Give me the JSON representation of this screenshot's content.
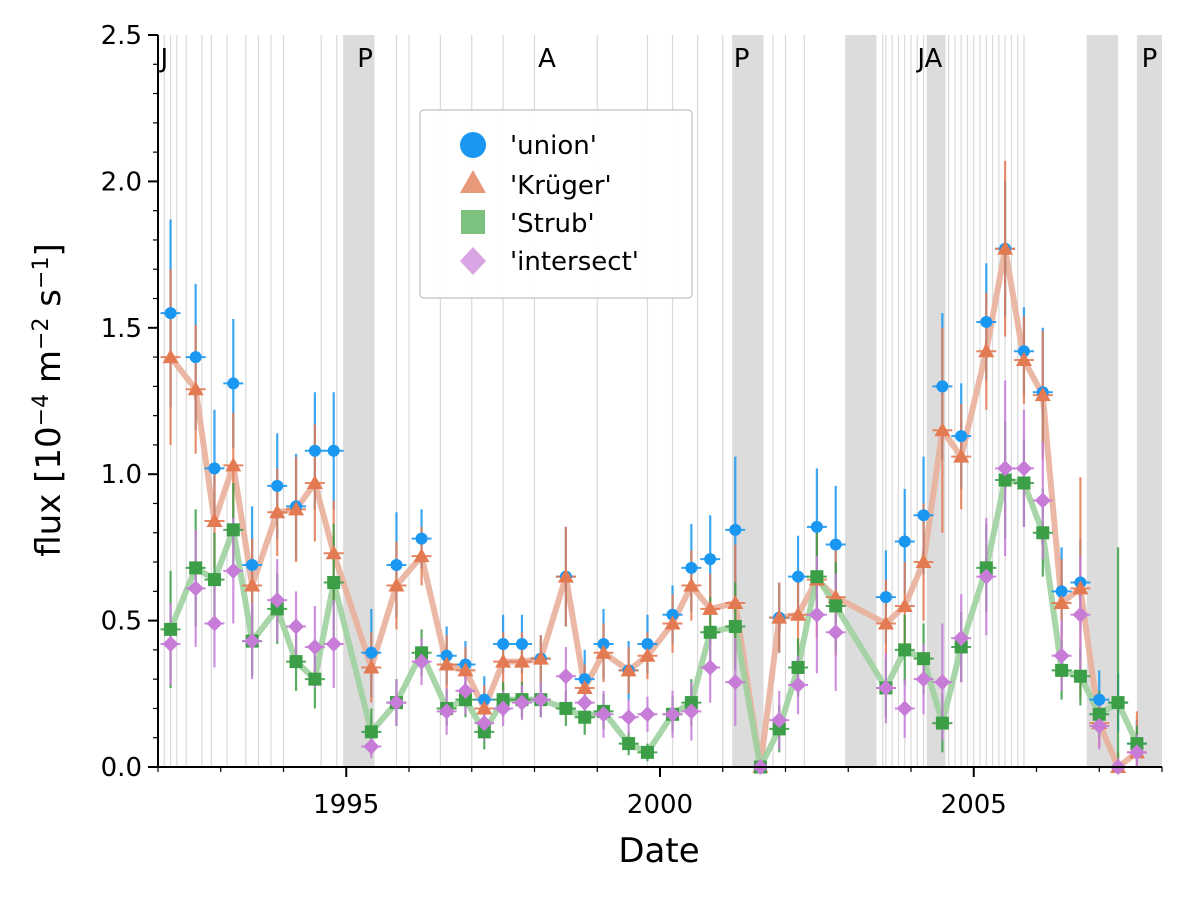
{
  "chart_data": {
    "type": "scatter",
    "xlabel": "Date",
    "ylabel_main": "flux [10",
    "ylabel_exp1": "−4",
    "ylabel_mid": " m",
    "ylabel_exp2": "−2",
    "ylabel_mid2": " s",
    "ylabel_exp3": "−1",
    "ylabel_end": "]",
    "xlim": [
      1992.0,
      2008.0
    ],
    "ylim": [
      0.0,
      2.5
    ],
    "x_ticks": [
      1995,
      2000,
      2005
    ],
    "x_tick_labels": [
      "1995",
      "2000",
      "2005"
    ],
    "y_ticks": [
      0.0,
      0.5,
      1.0,
      1.5,
      2.0,
      2.5
    ],
    "y_tick_labels": [
      "0.0",
      "0.5",
      "1.0",
      "1.5",
      "2.0",
      "2.5"
    ],
    "shaded_periods": [
      [
        1994.95,
        1995.45
      ],
      [
        2001.15,
        2001.65
      ],
      [
        2002.95,
        2003.45
      ],
      [
        2004.25,
        2004.55
      ],
      [
        2006.8,
        2007.3
      ],
      [
        2007.6,
        2008.0
      ]
    ],
    "vertical_lines": [
      1992.1,
      1992.2,
      1992.3,
      1992.45,
      1992.7,
      1992.85,
      1993.1,
      1993.4,
      1993.6,
      1993.8,
      1994.0,
      1994.6,
      1994.85,
      1995.8,
      1996.0,
      1996.5,
      1997.0,
      1997.5,
      1998.0,
      1999.0,
      1999.8,
      2000.2,
      2000.6,
      2001.0,
      2001.8,
      2002.0,
      2002.3,
      2003.55,
      2003.6,
      2003.7,
      2003.8,
      2003.9,
      2004.0,
      2004.1,
      2004.2,
      2004.6,
      2004.7,
      2004.8,
      2004.9,
      2005.0,
      2005.1,
      2005.2,
      2005.3,
      2005.4,
      2005.5,
      2005.6,
      2005.7,
      2005.8
    ],
    "region_labels": [
      {
        "x": 1992.1,
        "text": "J"
      },
      {
        "x": 1995.3,
        "text": "P"
      },
      {
        "x": 1998.2,
        "text": "A"
      },
      {
        "x": 2001.3,
        "text": "P"
      },
      {
        "x": 2004.3,
        "text": "JA"
      },
      {
        "x": 2007.8,
        "text": "P"
      }
    ],
    "series": [
      {
        "name": "'union'",
        "marker": "circle",
        "color": "#1a97f0",
        "line": false,
        "x": [
          1992.2,
          1992.6,
          1992.9,
          1993.2,
          1993.5,
          1993.9,
          1994.2,
          1994.5,
          1994.8,
          1995.4,
          1995.8,
          1996.2,
          1996.6,
          1996.9,
          1997.2,
          1997.5,
          1997.8,
          1998.1,
          1998.5,
          1998.8,
          1999.1,
          1999.5,
          1999.8,
          2000.2,
          2000.5,
          2000.8,
          2001.2,
          2001.9,
          2002.2,
          2002.5,
          2002.8,
          2003.6,
          2003.9,
          2004.2,
          2004.5,
          2004.8,
          2005.2,
          2005.5,
          2005.8,
          2006.1,
          2006.4,
          2006.7,
          2007.0,
          2007.3,
          2007.6
        ],
        "y": [
          1.55,
          1.4,
          1.02,
          1.31,
          0.69,
          0.96,
          0.89,
          1.08,
          1.08,
          0.39,
          0.69,
          0.78,
          0.38,
          0.35,
          0.23,
          0.42,
          0.42,
          0.37,
          0.65,
          0.3,
          0.42,
          0.33,
          0.42,
          0.52,
          0.68,
          0.71,
          0.81,
          0.51,
          0.65,
          0.82,
          0.76,
          0.58,
          0.77,
          0.86,
          1.3,
          1.13,
          1.52,
          1.77,
          1.42,
          1.28,
          0.6,
          0.63,
          0.23,
          0.22,
          0.08
        ],
        "err": [
          0.32,
          0.25,
          0.2,
          0.22,
          0.2,
          0.18,
          0.18,
          0.2,
          0.2,
          0.15,
          0.18,
          0.1,
          0.1,
          0.08,
          0.08,
          0.1,
          0.1,
          0.08,
          0.17,
          0.1,
          0.12,
          0.1,
          0.1,
          0.1,
          0.15,
          0.15,
          0.25,
          0.12,
          0.14,
          0.2,
          0.2,
          0.16,
          0.18,
          0.2,
          0.25,
          0.18,
          0.2,
          0.23,
          0.15,
          0.22,
          0.15,
          0.15,
          0.1,
          0.1,
          0.08
        ]
      },
      {
        "name": "'Krüger'",
        "marker": "triangle",
        "color": "#e47a52",
        "line": true,
        "line_color": "#eab09c",
        "x": [
          1992.2,
          1992.6,
          1992.9,
          1993.2,
          1993.5,
          1993.9,
          1994.2,
          1994.5,
          1994.8,
          1995.4,
          1995.8,
          1996.2,
          1996.6,
          1996.9,
          1997.2,
          1997.5,
          1997.8,
          1998.1,
          1998.5,
          1998.8,
          1999.1,
          1999.5,
          1999.8,
          2000.2,
          2000.5,
          2000.8,
          2001.2,
          2001.6,
          2001.9,
          2002.2,
          2002.5,
          2002.8,
          2003.6,
          2003.9,
          2004.2,
          2004.5,
          2004.8,
          2005.2,
          2005.5,
          2005.8,
          2006.1,
          2006.4,
          2006.7,
          2007.0,
          2007.3,
          2007.6
        ],
        "y": [
          1.4,
          1.29,
          0.84,
          1.03,
          0.62,
          0.87,
          0.88,
          0.97,
          0.73,
          0.34,
          0.62,
          0.72,
          0.35,
          0.33,
          0.2,
          0.36,
          0.36,
          0.37,
          0.65,
          0.27,
          0.39,
          0.33,
          0.38,
          0.49,
          0.62,
          0.54,
          0.56,
          0.0,
          0.51,
          0.52,
          0.64,
          0.58,
          0.49,
          0.55,
          0.7,
          1.15,
          1.06,
          1.42,
          1.77,
          1.39,
          1.27,
          0.56,
          0.61,
          0.15,
          0.0,
          0.05
        ],
        "err": [
          0.3,
          0.22,
          0.16,
          0.18,
          0.16,
          0.15,
          0.18,
          0.2,
          0.18,
          0.12,
          0.15,
          0.1,
          0.1,
          0.08,
          0.08,
          0.1,
          0.1,
          0.08,
          0.17,
          0.08,
          0.1,
          0.08,
          0.08,
          0.1,
          0.12,
          0.12,
          0.2,
          0.02,
          0.12,
          0.12,
          0.2,
          0.2,
          0.15,
          0.15,
          0.2,
          0.35,
          0.18,
          0.2,
          0.3,
          0.15,
          0.22,
          0.15,
          0.38,
          0.08,
          0.05,
          0.14
        ]
      },
      {
        "name": "'Strub'",
        "marker": "square",
        "color": "#3c9e46",
        "line": true,
        "line_color": "#9fd2a0",
        "x": [
          1992.2,
          1992.6,
          1992.9,
          1993.2,
          1993.5,
          1993.9,
          1994.2,
          1994.5,
          1994.8,
          1995.4,
          1995.8,
          1996.2,
          1996.6,
          1996.9,
          1997.2,
          1997.5,
          1997.8,
          1998.1,
          1998.5,
          1998.8,
          1999.1,
          1999.5,
          1999.8,
          2000.2,
          2000.5,
          2000.8,
          2001.2,
          2001.6,
          2001.9,
          2002.2,
          2002.5,
          2002.8,
          2003.6,
          2003.9,
          2004.2,
          2004.5,
          2004.8,
          2005.2,
          2005.5,
          2005.8,
          2006.1,
          2006.4,
          2006.7,
          2007.0,
          2007.3,
          2007.6
        ],
        "y": [
          0.47,
          0.68,
          0.64,
          0.81,
          0.43,
          0.54,
          0.36,
          0.3,
          0.63,
          0.12,
          0.22,
          0.39,
          0.2,
          0.23,
          0.12,
          0.23,
          0.23,
          0.23,
          0.2,
          0.17,
          0.19,
          0.08,
          0.05,
          0.18,
          0.22,
          0.46,
          0.48,
          0.0,
          0.13,
          0.34,
          0.65,
          0.55,
          0.27,
          0.4,
          0.37,
          0.15,
          0.41,
          0.68,
          0.98,
          0.97,
          0.8,
          0.33,
          0.31,
          0.18,
          0.22,
          0.08
        ],
        "err": [
          0.2,
          0.2,
          0.16,
          0.16,
          0.12,
          0.12,
          0.1,
          0.1,
          0.2,
          0.08,
          0.08,
          0.08,
          0.06,
          0.06,
          0.06,
          0.06,
          0.06,
          0.06,
          0.06,
          0.06,
          0.06,
          0.04,
          0.03,
          0.06,
          0.08,
          0.12,
          0.15,
          0.02,
          0.08,
          0.1,
          0.15,
          0.15,
          0.1,
          0.12,
          0.12,
          0.1,
          0.12,
          0.15,
          0.2,
          0.15,
          0.15,
          0.1,
          0.1,
          0.08,
          0.53,
          0.06
        ]
      },
      {
        "name": "'intersect'",
        "marker": "diamond",
        "color": "#c77cd8",
        "line": false,
        "x": [
          1992.2,
          1992.6,
          1992.9,
          1993.2,
          1993.5,
          1993.9,
          1994.2,
          1994.5,
          1994.8,
          1995.4,
          1995.8,
          1996.2,
          1996.6,
          1996.9,
          1997.2,
          1997.5,
          1997.8,
          1998.1,
          1998.5,
          1998.8,
          1999.1,
          1999.5,
          1999.8,
          2000.2,
          2000.5,
          2000.8,
          2001.2,
          2001.6,
          2001.9,
          2002.2,
          2002.5,
          2002.8,
          2003.6,
          2003.9,
          2004.2,
          2004.5,
          2004.8,
          2005.2,
          2005.5,
          2005.8,
          2006.1,
          2006.4,
          2006.7,
          2007.0,
          2007.3,
          2007.6
        ],
        "y": [
          0.42,
          0.61,
          0.49,
          0.67,
          0.43,
          0.57,
          0.48,
          0.41,
          0.42,
          0.07,
          0.22,
          0.36,
          0.19,
          0.26,
          0.15,
          0.2,
          0.22,
          0.23,
          0.31,
          0.22,
          0.18,
          0.17,
          0.18,
          0.18,
          0.19,
          0.34,
          0.29,
          0.0,
          0.16,
          0.28,
          0.52,
          0.46,
          0.27,
          0.2,
          0.3,
          0.29,
          0.44,
          0.65,
          1.02,
          1.02,
          0.91,
          0.38,
          0.52,
          0.14,
          0.0,
          0.05
        ],
        "err": [
          0.14,
          0.2,
          0.15,
          0.18,
          0.13,
          0.14,
          0.12,
          0.14,
          0.15,
          0.04,
          0.08,
          0.08,
          0.08,
          0.08,
          0.06,
          0.06,
          0.06,
          0.06,
          0.1,
          0.06,
          0.08,
          0.06,
          0.06,
          0.08,
          0.1,
          0.12,
          0.15,
          0.02,
          0.1,
          0.1,
          0.2,
          0.2,
          0.12,
          0.1,
          0.12,
          0.2,
          0.15,
          0.2,
          0.3,
          0.2,
          0.2,
          0.12,
          0.2,
          0.08,
          0.03,
          0.06
        ]
      }
    ]
  }
}
